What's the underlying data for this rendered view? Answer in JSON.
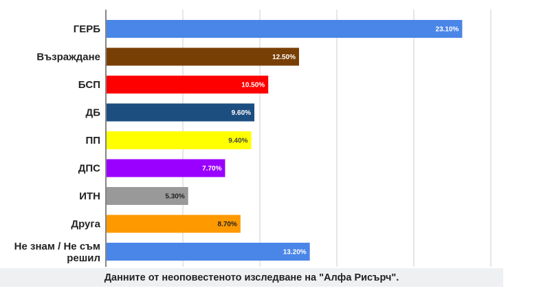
{
  "chart_data": {
    "type": "bar",
    "orientation": "horizontal",
    "categories": [
      "ГЕРБ",
      "Възраждане",
      "БСП",
      "ДБ",
      "ПП",
      "ДПС",
      "ИТН",
      "Друга",
      "Не знам / Не съм решил"
    ],
    "values": [
      23.1,
      12.5,
      10.5,
      9.6,
      9.4,
      7.7,
      5.3,
      8.7,
      13.2
    ],
    "value_labels": [
      "23.10%",
      "12.50%",
      "10.50%",
      "9.60%",
      "9.40%",
      "7.70%",
      "5.30%",
      "8.70%",
      "13.20%"
    ],
    "colors": [
      "#4a86e8",
      "#783f04",
      "#ff0000",
      "#1c4e80",
      "#ffff00",
      "#9900ff",
      "#999999",
      "#ff9900",
      "#4a86e8"
    ],
    "value_label_colors": [
      "#ffffff",
      "#ffffff",
      "#ffffff",
      "#ffffff",
      "#444444",
      "#ffffff",
      "#222222",
      "#222222",
      "#ffffff"
    ],
    "xlim": [
      0,
      25
    ],
    "grid_step": 5,
    "grid": true,
    "title": "",
    "xlabel": "",
    "ylabel": ""
  },
  "caption": "Данните от неоповестеното изследване на \"Алфа Рисърч\"."
}
